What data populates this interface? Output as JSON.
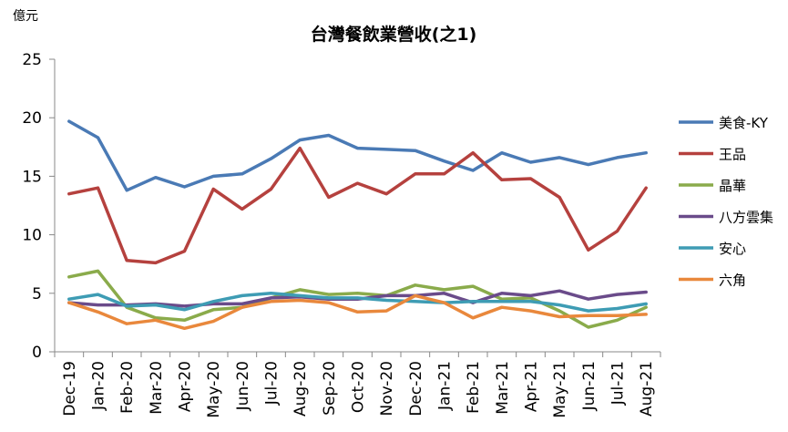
{
  "chart_data": {
    "type": "line",
    "title": "台灣餐飲業營收(之1)",
    "ylabel": "億元",
    "ylim": [
      0,
      25
    ],
    "yticks": [
      0,
      5,
      10,
      15,
      20,
      25
    ],
    "grid": false,
    "legend": "right",
    "categories": [
      "Dec-19",
      "Jan-20",
      "Feb-20",
      "Mar-20",
      "Apr-20",
      "May-20",
      "Jun-20",
      "Jul-20",
      "Aug-20",
      "Sep-20",
      "Oct-20",
      "Nov-20",
      "Dec-20",
      "Jan-21",
      "Feb-21",
      "Mar-21",
      "Apr-21",
      "May-21",
      "Jun-21",
      "Jul-21",
      "Aug-21"
    ],
    "series": [
      {
        "name": "美食-KY",
        "color": "#4a7ab5",
        "values": [
          19.7,
          18.3,
          13.8,
          14.9,
          14.1,
          15.0,
          15.2,
          16.5,
          18.1,
          18.5,
          17.4,
          17.3,
          17.2,
          16.3,
          15.5,
          17.0,
          16.2,
          16.6,
          16.0,
          16.6,
          17.0
        ]
      },
      {
        "name": "王品",
        "color": "#b5413e",
        "values": [
          13.5,
          14.0,
          7.8,
          7.6,
          8.6,
          13.9,
          12.2,
          13.9,
          17.4,
          13.2,
          14.4,
          13.5,
          15.2,
          15.2,
          17.0,
          14.7,
          14.8,
          13.2,
          8.7,
          10.3,
          14.0
        ]
      },
      {
        "name": "晶華",
        "color": "#8aab4b",
        "values": [
          6.4,
          6.9,
          3.8,
          2.9,
          2.7,
          3.6,
          3.8,
          4.6,
          5.3,
          4.9,
          5.0,
          4.8,
          5.7,
          5.3,
          5.6,
          4.5,
          4.6,
          3.5,
          2.1,
          2.7,
          3.8
        ]
      },
      {
        "name": "八方雲集",
        "color": "#6a4b8a",
        "values": [
          4.2,
          4.0,
          4.0,
          4.1,
          3.9,
          4.1,
          4.1,
          4.6,
          4.7,
          4.5,
          4.5,
          4.8,
          4.8,
          5.0,
          4.2,
          5.0,
          4.8,
          5.2,
          4.5,
          4.9,
          5.1
        ]
      },
      {
        "name": "安心",
        "color": "#3e9cb4",
        "values": [
          4.5,
          4.9,
          3.9,
          4.0,
          3.6,
          4.3,
          4.8,
          5.0,
          4.8,
          4.6,
          4.6,
          4.4,
          4.3,
          4.2,
          4.3,
          4.3,
          4.3,
          4.0,
          3.5,
          3.7,
          4.1
        ]
      },
      {
        "name": "六角",
        "color": "#e9883c",
        "values": [
          4.2,
          3.4,
          2.4,
          2.7,
          2.0,
          2.6,
          3.8,
          4.3,
          4.4,
          4.2,
          3.4,
          3.5,
          4.8,
          4.2,
          2.9,
          3.8,
          3.5,
          3.0,
          3.1,
          3.1,
          3.2
        ]
      }
    ]
  }
}
